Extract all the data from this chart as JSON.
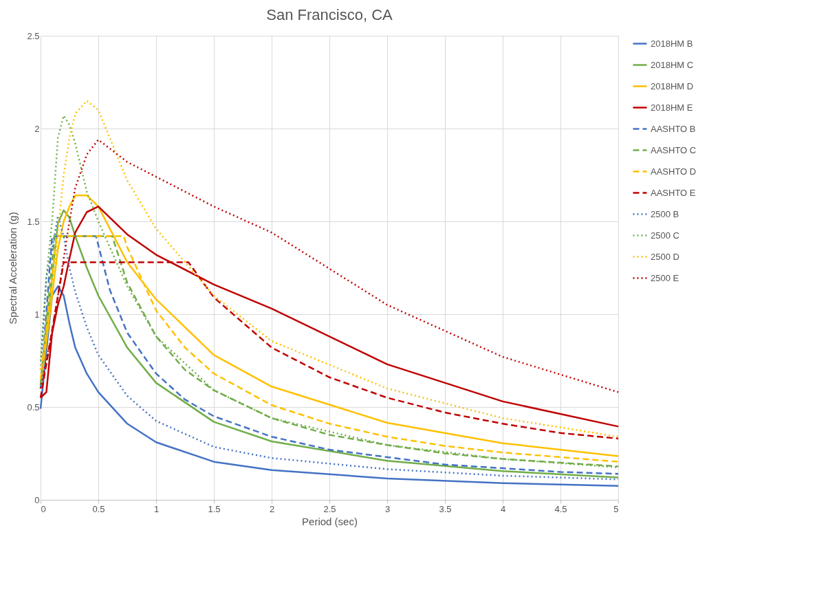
{
  "chart_data": {
    "type": "line",
    "title": "San Francisco, CA",
    "xlabel": "Period (sec)",
    "ylabel": "Spectral Acceleration (g)",
    "xlim": [
      0,
      5
    ],
    "ylim": [
      0,
      2.5
    ],
    "xticks": [
      0,
      0.5,
      1,
      1.5,
      2,
      2.5,
      3,
      3.5,
      4,
      4.5,
      5
    ],
    "yticks": [
      0,
      0.5,
      1,
      1.5,
      2,
      2.5
    ],
    "grid": true,
    "legend": "right",
    "marker": "none",
    "x": [
      0,
      0.05,
      0.1,
      0.15,
      0.2,
      0.25,
      0.3,
      0.4,
      0.5,
      0.75,
      1,
      1.5,
      2,
      3,
      4,
      5
    ],
    "series": [
      {
        "name": "2018HM B",
        "color": "#4472c4",
        "line_style": "solid",
        "values": [
          0.49,
          0.8,
          1.1,
          1.15,
          1.1,
          0.95,
          0.82,
          0.68,
          0.58,
          0.41,
          0.31,
          0.205,
          0.16,
          0.115,
          0.09,
          0.075
        ]
      },
      {
        "name": "2018HM C",
        "color": "#70ad47",
        "line_style": "solid",
        "values": [
          0.6,
          0.9,
          1.2,
          1.49,
          1.56,
          1.52,
          1.42,
          1.25,
          1.1,
          0.82,
          0.63,
          0.42,
          0.315,
          0.21,
          0.155,
          0.12
        ]
      },
      {
        "name": "2018HM D",
        "color": "#ffc000",
        "line_style": "solid",
        "values": [
          0.62,
          0.85,
          1.1,
          1.35,
          1.5,
          1.58,
          1.64,
          1.64,
          1.58,
          1.28,
          1.08,
          0.78,
          0.61,
          0.415,
          0.305,
          0.235
        ]
      },
      {
        "name": "2018HM E",
        "color": "#c00000",
        "line_style": "solid",
        "values": [
          0.55,
          0.58,
          0.9,
          1.05,
          1.15,
          1.3,
          1.44,
          1.55,
          1.58,
          1.43,
          1.32,
          1.16,
          1.03,
          0.73,
          0.53,
          0.395
        ]
      },
      {
        "name": "AASHTO B",
        "color": "#4472c4",
        "line_style": "dashed",
        "x": [
          0,
          0.1,
          0.48,
          0.6,
          0.75,
          1,
          1.25,
          1.5,
          2,
          2.5,
          3,
          3.5,
          4,
          4.5,
          5
        ],
        "values": [
          0.6,
          1.42,
          1.42,
          1.13,
          0.9,
          0.68,
          0.54,
          0.45,
          0.34,
          0.27,
          0.23,
          0.19,
          0.17,
          0.15,
          0.14
        ]
      },
      {
        "name": "AASHTO C",
        "color": "#70ad47",
        "line_style": "dashed",
        "x": [
          0,
          0.12,
          0.62,
          0.75,
          1,
          1.25,
          1.5,
          2,
          2.5,
          3,
          3.5,
          4,
          4.5,
          5
        ],
        "values": [
          0.62,
          1.42,
          1.42,
          1.17,
          0.88,
          0.7,
          0.59,
          0.44,
          0.35,
          0.295,
          0.25,
          0.22,
          0.2,
          0.18
        ]
      },
      {
        "name": "AASHTO D",
        "color": "#ffc000",
        "line_style": "dashed",
        "x": [
          0,
          0.14,
          0.72,
          0.75,
          1,
          1.25,
          1.5,
          2,
          2.5,
          3,
          3.5,
          4,
          4.5,
          5
        ],
        "values": [
          0.65,
          1.42,
          1.42,
          1.36,
          1.02,
          0.82,
          0.68,
          0.51,
          0.41,
          0.34,
          0.29,
          0.255,
          0.23,
          0.205
        ]
      },
      {
        "name": "AASHTO E",
        "color": "#c00000",
        "line_style": "dashed",
        "x": [
          0,
          0.2,
          1.28,
          1.5,
          2,
          2.5,
          3,
          3.5,
          4,
          4.5,
          5
        ],
        "values": [
          0.55,
          1.28,
          1.28,
          1.09,
          0.82,
          0.66,
          0.55,
          0.47,
          0.41,
          0.36,
          0.33
        ]
      },
      {
        "name": "2500 B",
        "color": "#4472c4",
        "line_style": "dotted",
        "values": [
          0.7,
          1.2,
          1.35,
          1.53,
          1.42,
          1.25,
          1.12,
          0.93,
          0.78,
          0.56,
          0.425,
          0.285,
          0.225,
          0.165,
          0.13,
          0.11
        ]
      },
      {
        "name": "2500 C",
        "color": "#70ad47",
        "line_style": "dotted",
        "values": [
          0.75,
          1.2,
          1.5,
          1.95,
          2.07,
          2.02,
          1.92,
          1.66,
          1.5,
          1.15,
          0.88,
          0.59,
          0.44,
          0.295,
          0.22,
          0.175
        ]
      },
      {
        "name": "2500 D",
        "color": "#ffc000",
        "line_style": "dotted",
        "values": [
          0.7,
          0.9,
          1.1,
          1.45,
          1.75,
          1.95,
          2.08,
          2.15,
          2.1,
          1.72,
          1.46,
          1.1,
          0.855,
          0.6,
          0.44,
          0.34
        ]
      },
      {
        "name": "2500 E",
        "color": "#c00000",
        "line_style": "dotted",
        "values": [
          0.6,
          0.75,
          0.9,
          1.1,
          1.3,
          1.5,
          1.68,
          1.86,
          1.94,
          1.82,
          1.74,
          1.58,
          1.44,
          1.05,
          0.77,
          0.58
        ]
      }
    ]
  }
}
